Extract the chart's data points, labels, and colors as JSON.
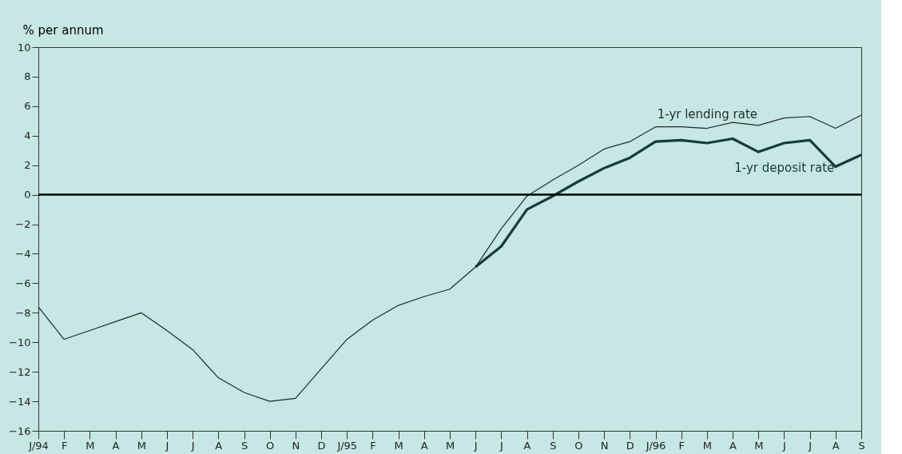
{
  "chart_data": {
    "type": "line",
    "ylabel": "% per annum",
    "categories": [
      "J/94",
      "F",
      "M",
      "A",
      "M",
      "J",
      "J",
      "A",
      "S",
      "O",
      "N",
      "D",
      "J/95",
      "F",
      "M",
      "A",
      "M",
      "J",
      "J",
      "A",
      "S",
      "O",
      "N",
      "D",
      "J/96",
      "F",
      "M",
      "A",
      "M",
      "J",
      "J",
      "A",
      "S"
    ],
    "ylim": [
      -16,
      10
    ],
    "yticks": [
      -16,
      -14,
      -12,
      -10,
      -8,
      -6,
      -4,
      -2,
      0,
      2,
      4,
      6,
      8,
      10
    ],
    "series": [
      {
        "name": "1-yr lending rate",
        "color": "#1f2a2a",
        "values": [
          -7.6,
          -9.8,
          -9.2,
          -8.6,
          -8.0,
          -9.2,
          -10.5,
          -12.4,
          -13.4,
          -14.0,
          -13.8,
          -11.8,
          -9.8,
          -8.5,
          -7.5,
          -6.9,
          -6.4,
          -4.9,
          -2.3,
          -0.1,
          1.0,
          2.0,
          3.1,
          3.6,
          4.6,
          4.6,
          4.5,
          4.9,
          4.7,
          5.2,
          5.3,
          4.5,
          5.4
        ]
      },
      {
        "name": "1-yr deposit rate",
        "color": "#173a3a",
        "values": [
          null,
          null,
          null,
          null,
          null,
          null,
          null,
          null,
          null,
          null,
          null,
          null,
          null,
          null,
          null,
          null,
          null,
          -4.9,
          -3.5,
          -1.0,
          -0.1,
          0.9,
          1.8,
          2.5,
          3.6,
          3.7,
          3.5,
          3.8,
          2.9,
          3.5,
          3.7,
          1.9,
          2.7
        ]
      }
    ],
    "ref_lines": [
      {
        "axis": "y",
        "value": 0,
        "color": "#000000"
      }
    ],
    "grid": false,
    "marker": "none",
    "line_style": "solid"
  }
}
